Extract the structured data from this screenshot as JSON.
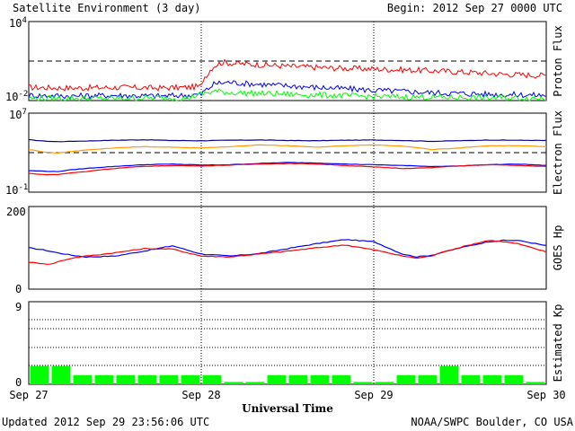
{
  "header": {
    "title": "Satellite Environment (3 day)",
    "begin": "Begin:  2012 Sep 27 0000 UTC"
  },
  "footer": {
    "updated": "Updated 2012 Sep 29 23:56:06 UTC",
    "credit": "NOAA/SWPC Boulder, CO USA"
  },
  "x_axis": {
    "label": "Universal Time",
    "ticks": [
      "Sep 27",
      "Sep 28",
      "Sep 29",
      "Sep 30"
    ]
  },
  "colors": {
    "red": "#ff0000",
    "blue": "#0000ff",
    "green": "#00ff00",
    "orange": "#ff9900",
    "navy": "#00008b"
  },
  "chart_data": [
    {
      "type": "line",
      "id": "proton",
      "ylabel": "Proton Flux",
      "yscale": "log",
      "ylim": [
        0.01,
        10000
      ],
      "ytick_labels": [
        {
          "base": "10",
          "exp": "4"
        },
        {
          "base": "10",
          "exp": "-2"
        }
      ],
      "threshold": 10,
      "x_unit": "hours since Sep 27 00 UTC",
      "series": [
        {
          "color": "#ff0000",
          "x": [
            0,
            6,
            12,
            18,
            22,
            24,
            25,
            26,
            27,
            28,
            30,
            33,
            36,
            42,
            48,
            54,
            60,
            66,
            72
          ],
          "y": [
            0.1,
            0.09,
            0.1,
            0.09,
            0.1,
            0.12,
            1.2,
            5,
            8,
            7,
            6,
            5,
            4,
            3,
            2.5,
            2,
            1.5,
            1,
            0.8
          ]
        },
        {
          "color": "#0000ff",
          "x": [
            0,
            6,
            12,
            18,
            22,
            24,
            25,
            26,
            28,
            30,
            34,
            40,
            48,
            56,
            64,
            72
          ],
          "y": [
            0.025,
            0.022,
            0.025,
            0.022,
            0.025,
            0.03,
            0.08,
            0.2,
            0.25,
            0.2,
            0.15,
            0.1,
            0.06,
            0.04,
            0.03,
            0.025
          ]
        },
        {
          "color": "#00ff00",
          "x": [
            0,
            6,
            12,
            18,
            22,
            24,
            26,
            28,
            32,
            36,
            42,
            48,
            56,
            64,
            72
          ],
          "y": [
            0.015,
            0.015,
            0.014,
            0.016,
            0.015,
            0.03,
            0.05,
            0.04,
            0.035,
            0.03,
            0.025,
            0.02,
            0.018,
            0.016,
            0.015
          ]
        }
      ]
    },
    {
      "type": "line",
      "id": "electron",
      "ylabel": "Electron Flux",
      "yscale": "log",
      "ylim": [
        0.1,
        10000000
      ],
      "ytick_labels": [
        {
          "base": "10",
          "exp": "7"
        },
        {
          "base": "10",
          "exp": "-1"
        }
      ],
      "threshold": 1000,
      "x_unit": "hours since Sep 27 00 UTC",
      "series": [
        {
          "color": "#00008b",
          "x": [
            0,
            2,
            4,
            8,
            12,
            16,
            20,
            24,
            28,
            32,
            36,
            40,
            44,
            48,
            52,
            56,
            60,
            64,
            68,
            72
          ],
          "y": [
            20000,
            15000,
            13000,
            15000,
            18000,
            20000,
            17000,
            16000,
            18000,
            19000,
            17000,
            16000,
            18000,
            19000,
            17000,
            14000,
            16000,
            19000,
            18000,
            17000
          ]
        },
        {
          "color": "#ff9900",
          "x": [
            0,
            2,
            4,
            8,
            12,
            16,
            20,
            24,
            28,
            32,
            36,
            40,
            44,
            48,
            52,
            56,
            60,
            64,
            68,
            72
          ],
          "y": [
            2000,
            1200,
            900,
            1800,
            3000,
            4000,
            3500,
            3000,
            4000,
            6000,
            5000,
            3500,
            5000,
            6000,
            4500,
            2000,
            3000,
            5000,
            5000,
            4000
          ]
        },
        {
          "color": "#0000ff",
          "x": [
            0,
            4,
            8,
            12,
            16,
            20,
            24,
            28,
            32,
            36,
            40,
            44,
            48,
            52,
            56,
            60,
            64,
            68,
            72
          ],
          "y": [
            15,
            12,
            25,
            40,
            60,
            70,
            55,
            60,
            80,
            100,
            90,
            70,
            60,
            50,
            40,
            45,
            60,
            70,
            50
          ]
        },
        {
          "color": "#ff0000",
          "x": [
            0,
            2,
            4,
            8,
            12,
            16,
            20,
            24,
            28,
            32,
            36,
            40,
            44,
            48,
            52,
            56,
            60,
            64,
            68,
            72
          ],
          "y": [
            8,
            6,
            6,
            12,
            25,
            40,
            50,
            45,
            55,
            70,
            80,
            70,
            50,
            35,
            25,
            30,
            45,
            60,
            50,
            40
          ]
        }
      ]
    },
    {
      "type": "line",
      "id": "hp",
      "ylabel": "GOES Hp",
      "ylim": [
        0,
        200
      ],
      "ytick_labels": [
        "200",
        "0"
      ],
      "x_unit": "hours since Sep 27 00 UTC",
      "series": [
        {
          "color": "#0000ff",
          "x": [
            0,
            2,
            4,
            6,
            8,
            12,
            16,
            20,
            24,
            28,
            32,
            36,
            40,
            44,
            48,
            50,
            52,
            54,
            56,
            60,
            64,
            66,
            68,
            70,
            72
          ],
          "y": [
            100,
            95,
            88,
            82,
            78,
            80,
            92,
            105,
            85,
            80,
            86,
            98,
            110,
            120,
            115,
            100,
            85,
            78,
            82,
            100,
            115,
            118,
            118,
            112,
            105
          ]
        },
        {
          "color": "#ff0000",
          "x": [
            0,
            2,
            3,
            4,
            6,
            8,
            12,
            16,
            20,
            24,
            28,
            32,
            36,
            40,
            44,
            48,
            50,
            52,
            54,
            56,
            58,
            62,
            64,
            66,
            68,
            70,
            72
          ],
          "y": [
            65,
            62,
            60,
            66,
            75,
            80,
            88,
            98,
            97,
            80,
            78,
            85,
            92,
            100,
            107,
            95,
            88,
            80,
            75,
            80,
            92,
            110,
            118,
            115,
            110,
            100,
            90
          ]
        }
      ]
    },
    {
      "type": "bar",
      "id": "kp",
      "ylabel": "Estimated Kp",
      "ylim": [
        0,
        9
      ],
      "ytick_labels": [
        "9",
        "0"
      ],
      "bar_hours": 3,
      "values": [
        2,
        2,
        1,
        1,
        1,
        1,
        1,
        1,
        1,
        0,
        0,
        1,
        1,
        1,
        1,
        0,
        0,
        1,
        1,
        2,
        1,
        1,
        1,
        0
      ],
      "color": "#00ff00"
    }
  ]
}
